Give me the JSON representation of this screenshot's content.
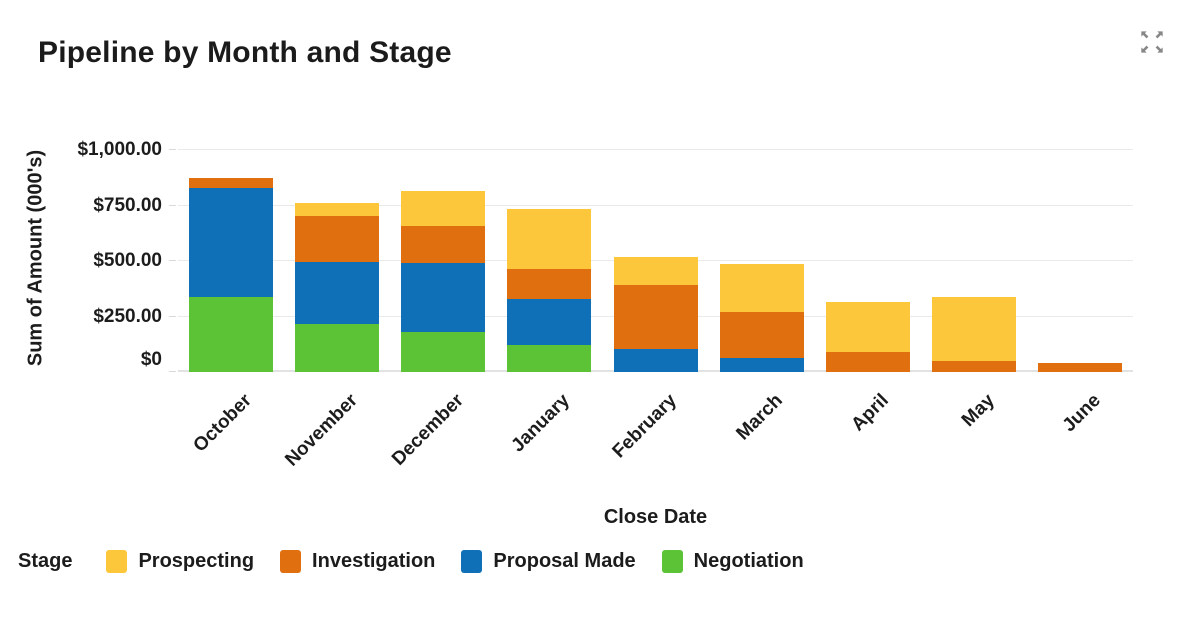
{
  "header": {
    "title": "Pipeline by Month and Stage",
    "expand_icon": "expand-icon",
    "icon_color": "#878787"
  },
  "chart_data": {
    "type": "bar",
    "stacked": true,
    "title": "Pipeline by Month and Stage",
    "xlabel": "Close Date",
    "ylabel": "Sum of Amount (000's)",
    "categories": [
      "October",
      "November",
      "December",
      "January",
      "February",
      "March",
      "April",
      "May",
      "June"
    ],
    "series": [
      {
        "name": "Negotiation",
        "color": "#5CC236",
        "values": [
          340,
          215,
          180,
          120,
          0,
          0,
          0,
          0,
          0
        ]
      },
      {
        "name": "Proposal Made",
        "color": "#0F6FB7",
        "values": [
          490,
          280,
          310,
          210,
          105,
          65,
          0,
          0,
          0
        ]
      },
      {
        "name": "Investigation",
        "color": "#E0700F",
        "values": [
          45,
          210,
          170,
          135,
          285,
          205,
          90,
          50,
          40
        ]
      },
      {
        "name": "Prospecting",
        "color": "#FDC73C",
        "values": [
          0,
          55,
          155,
          270,
          130,
          215,
          225,
          290,
          0
        ]
      }
    ],
    "stack_order_bottom_to_top": [
      "Negotiation",
      "Proposal Made",
      "Investigation",
      "Prospecting"
    ],
    "totals": [
      875,
      760,
      815,
      735,
      520,
      485,
      315,
      340,
      40
    ],
    "ylim": [
      0,
      1000
    ],
    "yticks": [
      {
        "value": 0,
        "label": "$0"
      },
      {
        "value": 250,
        "label": "$250.00"
      },
      {
        "value": 500,
        "label": "$500.00"
      },
      {
        "value": 750,
        "label": "$750.00"
      },
      {
        "value": 1000,
        "label": "$1,000.00"
      }
    ],
    "grid": true,
    "legend_position": "bottom",
    "legend_title": "Stage",
    "legend_order": [
      "Prospecting",
      "Investigation",
      "Proposal Made",
      "Negotiation"
    ],
    "gridline_color": "#eaeaea",
    "text_color": "#1c1c1c"
  }
}
